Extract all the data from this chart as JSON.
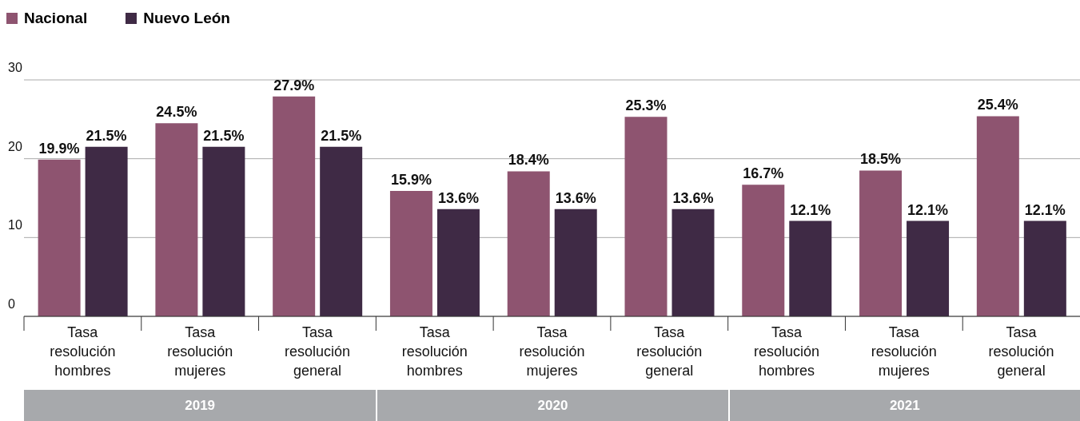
{
  "chart_data": {
    "type": "bar",
    "categories": [
      "Tasa resolución hombres",
      "Tasa resolución mujeres",
      "Tasa resolución general",
      "Tasa resolución hombres",
      "Tasa resolución mujeres",
      "Tasa resolución general",
      "Tasa resolución hombres",
      "Tasa resolución mujeres",
      "Tasa resolución general"
    ],
    "series": [
      {
        "name": "Nacional",
        "color": "#8e5470",
        "values": [
          19.9,
          24.5,
          27.9,
          15.9,
          18.4,
          25.3,
          16.7,
          18.5,
          25.4
        ],
        "value_labels": [
          "19.9%",
          "24.5%",
          "27.9%",
          "15.9%",
          "18.4%",
          "25.3%",
          "16.7%",
          "18.5%",
          "25.4%"
        ]
      },
      {
        "name": "Nuevo León",
        "color": "#3f2a45",
        "values": [
          21.5,
          21.5,
          21.5,
          13.6,
          13.6,
          13.6,
          12.1,
          12.1,
          12.1
        ],
        "value_labels": [
          "21.5%",
          "21.5%",
          "21.5%",
          "13.6%",
          "13.6%",
          "13.6%",
          "12.1%",
          "12.1%",
          "12.1%"
        ]
      }
    ],
    "ylim": [
      0,
      30
    ],
    "yticks": [
      0,
      10,
      20,
      30
    ],
    "grid": "y",
    "legend": "top left",
    "annotations": [
      "2019",
      "2020",
      "2021"
    ]
  }
}
